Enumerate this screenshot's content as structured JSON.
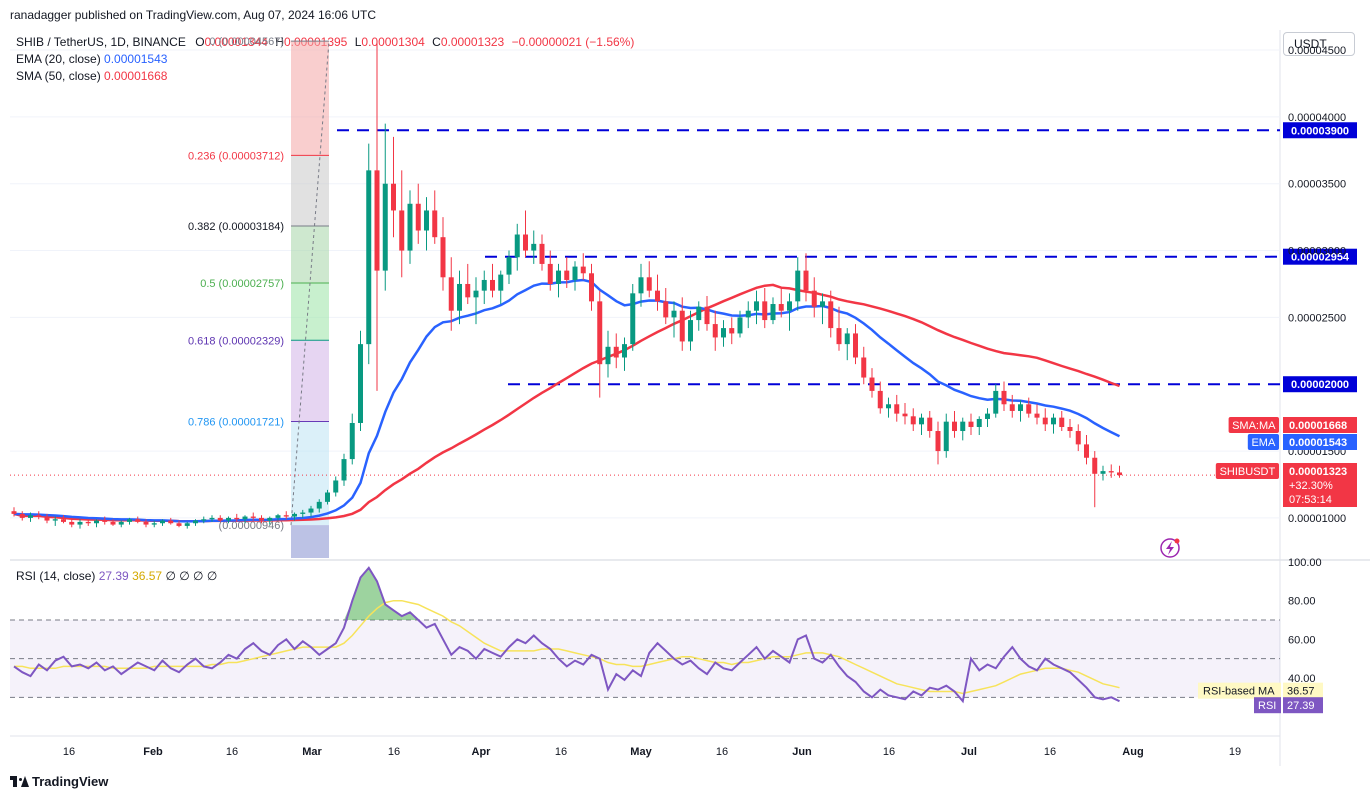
{
  "publisher": "ranadagger published on TradingView.com, Aug 07, 2024 16:06 UTC",
  "legend": {
    "symbol": "SHIB / TetherUS, 1D, BINANCE",
    "o_label": "O",
    "o": "0.00001344",
    "h_label": "H",
    "h": "0.00001395",
    "l_label": "L",
    "l": "0.00001304",
    "c_label": "C",
    "c": "0.00001323",
    "change": "−0.00000021 (−1.56%)",
    "ema_label": "EMA (20, close)",
    "ema_value": "0.00001543",
    "sma_label": "SMA (50, close)",
    "sma_value": "0.00001668"
  },
  "currency_button": "USDT",
  "rsi_legend": {
    "label": "RSI (14, close)",
    "rsi": "27.39",
    "ma": "36.57",
    "zeros": "∅ ∅ ∅ ∅"
  },
  "brand": "TradingView",
  "colors": {
    "up": "#089981",
    "down": "#f23645",
    "ema": "#2962ff",
    "sma": "#f23645",
    "level": "#0000d8",
    "rsi": "#7e57c2",
    "rsi_ma": "#f7e35a"
  },
  "chart_data": [
    {
      "type": "candlestick",
      "symbol": "SHIBUSDT",
      "x_ticks": [
        "16",
        "Feb",
        "16",
        "Mar",
        "16",
        "Apr",
        "16",
        "May",
        "16",
        "Jun",
        "16",
        "Jul",
        "16",
        "Aug",
        "19"
      ],
      "y_ticks": [
        "0.00004500",
        "0.00004000",
        "0.00003500",
        "0.00003000",
        "0.00002500",
        "0.00001500",
        "0.00001000"
      ],
      "ylim": [
        7e-06,
        4.65e-05
      ],
      "horizontal_levels": [
        {
          "label": "0.00003900",
          "value": 3.9e-05
        },
        {
          "label": "0.00002954",
          "value": 2.954e-05
        },
        {
          "label": "0.00002000",
          "value": 2e-05
        }
      ],
      "fib_levels": [
        {
          "label": "0 (0.00004567)",
          "value": 4.567e-05
        },
        {
          "label": "0.236 (0.00003712)",
          "value": 3.712e-05
        },
        {
          "label": "0.382 (0.00003184)",
          "value": 3.184e-05
        },
        {
          "label": "0.5 (0.00002757)",
          "value": 2.757e-05
        },
        {
          "label": "0.618 (0.00002329)",
          "value": 2.329e-05
        },
        {
          "label": "0.786 (0.00001721)",
          "value": 1.721e-05
        }
      ],
      "fib_partial_label": "(0.00000946)",
      "price_tags": [
        {
          "label": "SMA:MA",
          "value": "0.00001668"
        },
        {
          "label": "EMA",
          "value": "0.00001543"
        },
        {
          "label": "SHIBUSDT",
          "value": "0.00001323",
          "change": "+32.30%",
          "countdown": "07:53:14"
        }
      ],
      "ohlc_approx": [
        [
          1.05e-05,
          1.08e-05,
          1.01e-05,
          1.03e-05
        ],
        [
          1.03e-05,
          1.05e-05,
          9.8e-06,
          1e-05
        ],
        [
          1e-05,
          1.04e-05,
          9.7e-06,
          1.02e-05
        ],
        [
          1.02e-05,
          1.05e-05,
          9.9e-06,
          1.01e-05
        ],
        [
          1.01e-05,
          1.03e-05,
          9.6e-06,
          9.8e-06
        ],
        [
          9.8e-06,
          1.01e-05,
          9.4e-06,
          9.9e-06
        ],
        [
          9.9e-06,
          1.02e-05,
          9.6e-06,
          9.7e-06
        ],
        [
          9.7e-06,
          1e-05,
          9.3e-06,
          9.5e-06
        ],
        [
          9.5e-06,
          9.9e-06,
          9.2e-06,
          9.7e-06
        ],
        [
          9.7e-06,
          9.9e-06,
          9.4e-06,
          9.6e-06
        ],
        [
          9.6e-06,
          9.9e-06,
          9.3e-06,
          9.8e-06
        ],
        [
          9.8e-06,
          1.01e-05,
          9.5e-06,
          9.7e-06
        ],
        [
          9.7e-06,
          9.9e-06,
          9.4e-06,
          9.5e-06
        ],
        [
          9.5e-06,
          9.8e-06,
          9.3e-06,
          9.7e-06
        ],
        [
          9.7e-06,
          1e-05,
          9.5e-06,
          9.9e-06
        ],
        [
          9.9e-06,
          1.01e-05,
          9.6e-06,
          9.7e-06
        ],
        [
          9.7e-06,
          9.9e-06,
          9.3e-06,
          9.5e-06
        ],
        [
          9.5e-06,
          9.8e-06,
          9.3e-06,
          9.6e-06
        ],
        [
          9.6e-06,
          9.9e-06,
          9.4e-06,
          9.8e-06
        ],
        [
          9.8e-06,
          1e-05,
          9.5e-06,
          9.6e-06
        ],
        [
          9.6e-06,
          9.8e-06,
          9.3e-06,
          9.4e-06
        ],
        [
          9.4e-06,
          9.7e-06,
          9.2e-06,
          9.6e-06
        ],
        [
          9.6e-06,
          9.9e-06,
          9.4e-06,
          9.8e-06
        ],
        [
          9.8e-06,
          1.01e-05,
          9.6e-06,
          9.9e-06
        ],
        [
          9.9e-06,
          1.02e-05,
          9.7e-06,
          1e-05
        ],
        [
          1e-05,
          1.02e-05,
          9.7e-06,
          9.8e-06
        ],
        [
          9.8e-06,
          1.01e-05,
          9.6e-06,
          1e-05
        ],
        [
          1e-05,
          1.03e-05,
          9.7e-06,
          9.9e-06
        ],
        [
          9.9e-06,
          1.02e-05,
          9.6e-06,
          1.01e-05
        ],
        [
          1.01e-05,
          1.04e-05,
          9.8e-06,
          1e-05
        ],
        [
          1e-05,
          1.02e-05,
          9.6e-06,
          9.8e-06
        ],
        [
          9.8e-06,
          1.01e-05,
          9.5e-06,
          1e-05
        ],
        [
          1e-05,
          1.03e-05,
          9.8e-06,
          1.02e-05
        ],
        [
          1.02e-05,
          1.05e-05,
          9.9e-06,
          1.01e-05
        ],
        [
          1.01e-05,
          1.04e-05,
          9.8e-06,
          1.03e-05
        ],
        [
          1.03e-05,
          1.06e-05,
          1e-05,
          1.04e-05
        ],
        [
          1.04e-05,
          1.09e-05,
          1.01e-05,
          1.07e-05
        ],
        [
          1.07e-05,
          1.14e-05,
          1.04e-05,
          1.12e-05
        ],
        [
          1.12e-05,
          1.21e-05,
          1.1e-05,
          1.19e-05
        ],
        [
          1.19e-05,
          1.31e-05,
          1.16e-05,
          1.28e-05
        ],
        [
          1.28e-05,
          1.48e-05,
          1.24e-05,
          1.44e-05
        ],
        [
          1.44e-05,
          1.78e-05,
          1.4e-05,
          1.71e-05
        ],
        [
          1.71e-05,
          2.4e-05,
          1.65e-05,
          2.3e-05
        ],
        [
          2.3e-05,
          3.8e-05,
          2.15e-05,
          3.6e-05
        ],
        [
          3.6e-05,
          4.57e-05,
          1.95e-05,
          2.85e-05
        ],
        [
          2.85e-05,
          3.95e-05,
          2.7e-05,
          3.5e-05
        ],
        [
          3.5e-05,
          3.85e-05,
          3.1e-05,
          3.3e-05
        ],
        [
          3.3e-05,
          3.6e-05,
          2.8e-05,
          3e-05
        ],
        [
          3e-05,
          3.45e-05,
          2.9e-05,
          3.35e-05
        ],
        [
          3.35e-05,
          3.5e-05,
          3.05e-05,
          3.15e-05
        ],
        [
          3.15e-05,
          3.4e-05,
          3e-05,
          3.3e-05
        ],
        [
          3.3e-05,
          3.45e-05,
          3.05e-05,
          3.1e-05
        ],
        [
          3.1e-05,
          3.25e-05,
          2.7e-05,
          2.8e-05
        ],
        [
          2.8e-05,
          2.95e-05,
          2.4e-05,
          2.55e-05
        ],
        [
          2.55e-05,
          2.85e-05,
          2.45e-05,
          2.75e-05
        ],
        [
          2.75e-05,
          2.9e-05,
          2.6e-05,
          2.65e-05
        ],
        [
          2.65e-05,
          2.8e-05,
          2.45e-05,
          2.7e-05
        ],
        [
          2.7e-05,
          2.85e-05,
          2.6e-05,
          2.78e-05
        ],
        [
          2.78e-05,
          2.9e-05,
          2.65e-05,
          2.7e-05
        ],
        [
          2.7e-05,
          2.85e-05,
          2.6e-05,
          2.82e-05
        ],
        [
          2.82e-05,
          3e-05,
          2.75e-05,
          2.95e-05
        ],
        [
          2.95e-05,
          3.2e-05,
          2.85e-05,
          3.12e-05
        ],
        [
          3.12e-05,
          3.3e-05,
          2.95e-05,
          3e-05
        ],
        [
          3e-05,
          3.15e-05,
          2.9e-05,
          3.05e-05
        ],
        [
          3.05e-05,
          3.12e-05,
          2.85e-05,
          2.9e-05
        ],
        [
          2.9e-05,
          3e-05,
          2.7e-05,
          2.75e-05
        ],
        [
          2.75e-05,
          2.9e-05,
          2.65e-05,
          2.85e-05
        ],
        [
          2.85e-05,
          2.95e-05,
          2.72e-05,
          2.78e-05
        ],
        [
          2.78e-05,
          2.92e-05,
          2.7e-05,
          2.88e-05
        ],
        [
          2.88e-05,
          2.98e-05,
          2.78e-05,
          2.83e-05
        ],
        [
          2.83e-05,
          2.9e-05,
          2.55e-05,
          2.62e-05
        ],
        [
          2.62e-05,
          2.7e-05,
          1.9e-05,
          2.15e-05
        ],
        [
          2.15e-05,
          2.4e-05,
          2.05e-05,
          2.28e-05
        ],
        [
          2.28e-05,
          2.38e-05,
          2.12e-05,
          2.2e-05
        ],
        [
          2.2e-05,
          2.35e-05,
          2.1e-05,
          2.3e-05
        ],
        [
          2.3e-05,
          2.75e-05,
          2.25e-05,
          2.68e-05
        ],
        [
          2.68e-05,
          2.9e-05,
          2.58e-05,
          2.8e-05
        ],
        [
          2.8e-05,
          2.92e-05,
          2.65e-05,
          2.7e-05
        ],
        [
          2.7e-05,
          2.82e-05,
          2.55e-05,
          2.62e-05
        ],
        [
          2.62e-05,
          2.72e-05,
          2.45e-05,
          2.5e-05
        ],
        [
          2.5e-05,
          2.62e-05,
          2.35e-05,
          2.55e-05
        ],
        [
          2.55e-05,
          2.65e-05,
          2.25e-05,
          2.32e-05
        ],
        [
          2.32e-05,
          2.55e-05,
          2.25e-05,
          2.48e-05
        ],
        [
          2.48e-05,
          2.62e-05,
          2.4e-05,
          2.58e-05
        ],
        [
          2.58e-05,
          2.66e-05,
          2.4e-05,
          2.45e-05
        ],
        [
          2.45e-05,
          2.55e-05,
          2.25e-05,
          2.35e-05
        ],
        [
          2.35e-05,
          2.48e-05,
          2.28e-05,
          2.42e-05
        ],
        [
          2.42e-05,
          2.5e-05,
          2.3e-05,
          2.38e-05
        ],
        [
          2.38e-05,
          2.55e-05,
          2.35e-05,
          2.5e-05
        ],
        [
          2.5e-05,
          2.62e-05,
          2.42e-05,
          2.55e-05
        ],
        [
          2.55e-05,
          2.7e-05,
          2.45e-05,
          2.62e-05
        ],
        [
          2.62e-05,
          2.72e-05,
          2.42e-05,
          2.48e-05
        ],
        [
          2.48e-05,
          2.65e-05,
          2.45e-05,
          2.6e-05
        ],
        [
          2.6e-05,
          2.72e-05,
          2.5e-05,
          2.55e-05
        ],
        [
          2.55e-05,
          2.68e-05,
          2.4e-05,
          2.62e-05
        ],
        [
          2.62e-05,
          2.95e-05,
          2.55e-05,
          2.85e-05
        ],
        [
          2.85e-05,
          2.98e-05,
          2.62e-05,
          2.7e-05
        ],
        [
          2.7e-05,
          2.8e-05,
          2.5e-05,
          2.58e-05
        ],
        [
          2.58e-05,
          2.68e-05,
          2.45e-05,
          2.62e-05
        ],
        [
          2.62e-05,
          2.7e-05,
          2.35e-05,
          2.42e-05
        ],
        [
          2.42e-05,
          2.58e-05,
          2.25e-05,
          2.3e-05
        ],
        [
          2.3e-05,
          2.42e-05,
          2.18e-05,
          2.38e-05
        ],
        [
          2.38e-05,
          2.45e-05,
          2.15e-05,
          2.2e-05
        ],
        [
          2.2e-05,
          2.28e-05,
          2e-05,
          2.05e-05
        ],
        [
          2.05e-05,
          2.12e-05,
          1.9e-05,
          1.95e-05
        ],
        [
          1.95e-05,
          2.02e-05,
          1.78e-05,
          1.82e-05
        ],
        [
          1.82e-05,
          1.9e-05,
          1.75e-05,
          1.85e-05
        ],
        [
          1.85e-05,
          1.92e-05,
          1.72e-05,
          1.78e-05
        ],
        [
          1.78e-05,
          1.86e-05,
          1.7e-05,
          1.76e-05
        ],
        [
          1.76e-05,
          1.82e-05,
          1.65e-05,
          1.7e-05
        ],
        [
          1.7e-05,
          1.78e-05,
          1.62e-05,
          1.75e-05
        ],
        [
          1.75e-05,
          1.8e-05,
          1.6e-05,
          1.65e-05
        ],
        [
          1.65e-05,
          1.72e-05,
          1.4e-05,
          1.5e-05
        ],
        [
          1.5e-05,
          1.78e-05,
          1.45e-05,
          1.72e-05
        ],
        [
          1.72e-05,
          1.8e-05,
          1.6e-05,
          1.65e-05
        ],
        [
          1.65e-05,
          1.75e-05,
          1.58e-05,
          1.72e-05
        ],
        [
          1.72e-05,
          1.78e-05,
          1.62e-05,
          1.68e-05
        ],
        [
          1.68e-05,
          1.76e-05,
          1.62e-05,
          1.74e-05
        ],
        [
          1.74e-05,
          1.82e-05,
          1.68e-05,
          1.78e-05
        ],
        [
          1.78e-05,
          2e-05,
          1.75e-05,
          1.95e-05
        ],
        [
          1.95e-05,
          2.02e-05,
          1.8e-05,
          1.85e-05
        ],
        [
          1.85e-05,
          1.92e-05,
          1.75e-05,
          1.8e-05
        ],
        [
          1.8e-05,
          1.88e-05,
          1.72e-05,
          1.85e-05
        ],
        [
          1.85e-05,
          1.9e-05,
          1.75e-05,
          1.78e-05
        ],
        [
          1.78e-05,
          1.85e-05,
          1.7e-05,
          1.75e-05
        ],
        [
          1.75e-05,
          1.82e-05,
          1.65e-05,
          1.7e-05
        ],
        [
          1.7e-05,
          1.78e-05,
          1.63e-05,
          1.75e-05
        ],
        [
          1.75e-05,
          1.8e-05,
          1.65e-05,
          1.68e-05
        ],
        [
          1.68e-05,
          1.74e-05,
          1.6e-05,
          1.65e-05
        ],
        [
          1.65e-05,
          1.7e-05,
          1.5e-05,
          1.55e-05
        ],
        [
          1.55e-05,
          1.62e-05,
          1.4e-05,
          1.45e-05
        ],
        [
          1.45e-05,
          1.5e-05,
          1.08e-05,
          1.33e-05
        ],
        [
          1.33e-05,
          1.39e-05,
          1.28e-05,
          1.35e-05
        ],
        [
          1.35e-05,
          1.4e-05,
          1.3e-05,
          1.34e-05
        ],
        [
          1.34e-05,
          1.39e-05,
          1.3e-05,
          1.32e-05
        ]
      ]
    },
    {
      "type": "line",
      "title": "RSI (14, close)",
      "y_ticks": [
        "100.00",
        "80.00",
        "60.00",
        "40.00"
      ],
      "ylim": [
        10,
        100
      ],
      "bands": [
        30,
        50,
        70
      ],
      "rsi_ma_label": "RSI-based MA",
      "rsi_ma_value": "36.57",
      "rsi_label": "RSI",
      "rsi_value": "27.39",
      "rsi": [
        46,
        43,
        41,
        47,
        44,
        49,
        51,
        46,
        47,
        45,
        48,
        44,
        46,
        42,
        45,
        48,
        46,
        44,
        49,
        45,
        43,
        47,
        50,
        46,
        45,
        48,
        52,
        50,
        55,
        58,
        54,
        52,
        57,
        60,
        55,
        59,
        56,
        52,
        55,
        58,
        66,
        80,
        92,
        97,
        90,
        78,
        75,
        72,
        74,
        70,
        66,
        68,
        60,
        52,
        56,
        54,
        50,
        55,
        53,
        51,
        56,
        60,
        58,
        62,
        58,
        55,
        50,
        46,
        49,
        47,
        52,
        50,
        34,
        42,
        39,
        44,
        41,
        53,
        58,
        54,
        50,
        47,
        49,
        45,
        42,
        48,
        45,
        44,
        48,
        52,
        56,
        50,
        54,
        51,
        48,
        60,
        62,
        50,
        48,
        52,
        46,
        41,
        38,
        33,
        30,
        34,
        31,
        30,
        29,
        33,
        31,
        35,
        34,
        36,
        33,
        28,
        50,
        44,
        47,
        45,
        51,
        56,
        50,
        46,
        44,
        50,
        47,
        45,
        43,
        39,
        35,
        30,
        29,
        30,
        28
      ],
      "rsi_ma": [
        46,
        46,
        45,
        45,
        45,
        45,
        46,
        46,
        46,
        46,
        46,
        46,
        45,
        45,
        45,
        45,
        45,
        46,
        46,
        46,
        46,
        46,
        46,
        46,
        47,
        47,
        48,
        48,
        49,
        50,
        51,
        52,
        53,
        54,
        55,
        56,
        56,
        56,
        56,
        56,
        58,
        62,
        67,
        72,
        76,
        79,
        80,
        80,
        79,
        78,
        76,
        74,
        72,
        69,
        67,
        64,
        61,
        58,
        56,
        54,
        54,
        54,
        54,
        54,
        55,
        55,
        55,
        54,
        53,
        52,
        51,
        50,
        48,
        47,
        47,
        46,
        46,
        47,
        48,
        49,
        50,
        51,
        51,
        50,
        49,
        48,
        48,
        47,
        48,
        48,
        49,
        50,
        51,
        51,
        51,
        52,
        53,
        53,
        53,
        52,
        51,
        49,
        47,
        45,
        43,
        41,
        39,
        37,
        36,
        35,
        34,
        33,
        33,
        33,
        33,
        32,
        33,
        34,
        35,
        36,
        38,
        40,
        42,
        43,
        44,
        45,
        45,
        45,
        44,
        43,
        41,
        39,
        37,
        36,
        35
      ]
    }
  ]
}
